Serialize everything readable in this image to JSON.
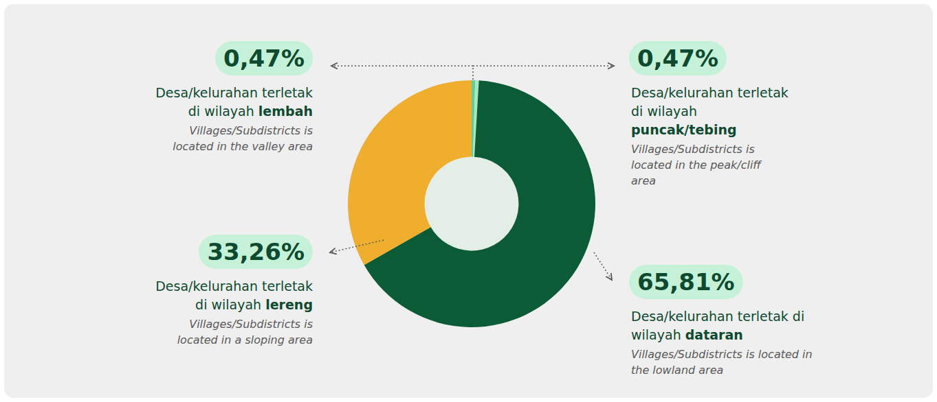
{
  "chart_data": {
    "type": "pie",
    "categories": [
      "lembah",
      "puncak/tebing",
      "dataran",
      "lereng"
    ],
    "values": [
      0.47,
      0.47,
      65.81,
      33.26
    ],
    "value_labels": [
      "0,47%",
      "0,47%",
      "65,81%",
      "33,26%"
    ],
    "colors": [
      "#5fcf95",
      "#a8e6c4",
      "#0b5b36",
      "#f0ae2f"
    ],
    "descriptions": [
      "Desa/kelurahan terletak di wilayah",
      "Desa/kelurahan terletak di wilayah",
      "Desa/kelurahan terletak di wilayah",
      "Desa/kelurahan terletak di wilayah"
    ],
    "translations": [
      "Villages/Subdistricts is located in the valley area",
      "Villages/Subdistricts is located in the peak/cliff area",
      "Villages/Subdistricts is located in the lowland area",
      "Villages/Subdistricts is located in a sloping area"
    ]
  }
}
